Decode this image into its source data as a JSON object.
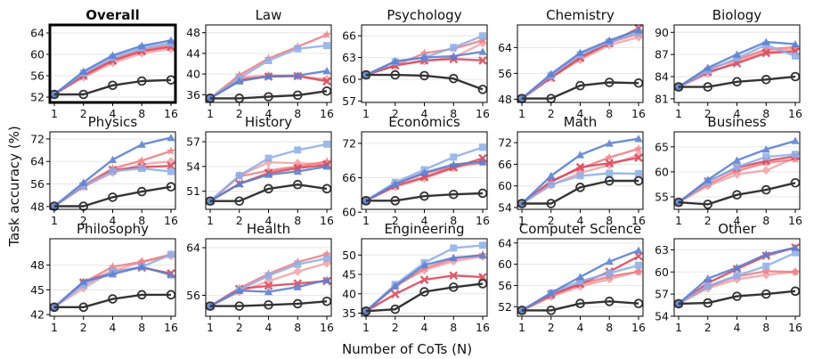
{
  "figure": {
    "ylabel": "Task accuracy (%)",
    "xlabel": "Number of CoTs (N)"
  },
  "series_styles": [
    {
      "color": "#333333",
      "marker": "circle-open"
    },
    {
      "color": "#5b7fd1",
      "marker": "triangle"
    },
    {
      "color": "#8fb0e8",
      "marker": "square"
    },
    {
      "color": "#d9485a",
      "marker": "x"
    },
    {
      "color": "#ee7f86",
      "marker": "star"
    },
    {
      "color": "#f4a3a8",
      "marker": "diamond"
    }
  ],
  "chart_data": [
    {
      "type": "line",
      "title": "Overall",
      "highlighted": true,
      "x": [
        "1",
        "2",
        "4",
        "8",
        "16"
      ],
      "yticks": [
        52,
        56,
        60,
        64
      ],
      "ylim": [
        51,
        65.5
      ],
      "series": [
        {
          "values": [
            52.5,
            52.5,
            54.2,
            55.0,
            55.2
          ]
        },
        {
          "values": [
            52.5,
            56.8,
            59.8,
            61.6,
            62.6
          ]
        },
        {
          "values": [
            52.5,
            56.5,
            59.4,
            61.2,
            62.1
          ]
        },
        {
          "values": [
            52.5,
            56.0,
            58.8,
            60.6,
            61.4
          ]
        },
        {
          "values": [
            52.5,
            56.2,
            59.0,
            60.9,
            61.7
          ]
        },
        {
          "values": [
            52.5,
            55.7,
            58.4,
            60.2,
            61.0
          ]
        }
      ]
    },
    {
      "type": "line",
      "title": "Law",
      "x": [
        "1",
        "2",
        "4",
        "8",
        "16"
      ],
      "yticks": [
        36,
        40,
        44,
        48
      ],
      "ylim": [
        34.5,
        49.5
      ],
      "series": [
        {
          "values": [
            35.3,
            35.3,
            35.6,
            35.9,
            36.7
          ]
        },
        {
          "values": [
            35.3,
            38.6,
            39.6,
            39.7,
            40.6
          ]
        },
        {
          "values": [
            35.3,
            39.2,
            42.6,
            44.9,
            45.5
          ]
        },
        {
          "values": [
            35.3,
            38.9,
            39.5,
            39.6,
            38.6
          ]
        },
        {
          "values": [
            35.3,
            39.8,
            43.0,
            45.3,
            47.6
          ]
        },
        {
          "values": [
            35.3,
            39.4,
            39.7,
            39.6,
            39.0
          ]
        }
      ]
    },
    {
      "type": "line",
      "title": "Psychology",
      "x": [
        "1",
        "2",
        "4",
        "8",
        "16"
      ],
      "yticks": [
        57,
        60,
        63,
        66
      ],
      "ylim": [
        56.8,
        67.5
      ],
      "series": [
        {
          "values": [
            60.6,
            60.6,
            60.5,
            60.1,
            58.6
          ]
        },
        {
          "values": [
            60.6,
            62.5,
            63.0,
            63.2,
            63.8
          ]
        },
        {
          "values": [
            60.6,
            62.4,
            63.0,
            64.4,
            66.0
          ]
        },
        {
          "values": [
            60.6,
            61.9,
            62.6,
            62.8,
            62.6
          ]
        },
        {
          "values": [
            60.6,
            61.9,
            63.6,
            64.2,
            65.4
          ]
        },
        {
          "values": [
            60.6,
            61.9,
            62.5,
            63.0,
            65.0
          ]
        }
      ]
    },
    {
      "type": "line",
      "title": "Chemistry",
      "x": [
        "1",
        "2",
        "4",
        "8",
        "16"
      ],
      "yticks": [
        48,
        56,
        64
      ],
      "ylim": [
        47,
        71
      ],
      "series": [
        {
          "values": [
            48.2,
            48.2,
            52.2,
            53.2,
            53.0
          ]
        },
        {
          "values": [
            48.2,
            55.8,
            62.4,
            66.2,
            69.4
          ]
        },
        {
          "values": [
            48.2,
            55.4,
            61.8,
            65.8,
            68.6
          ]
        },
        {
          "values": [
            48.2,
            54.6,
            60.8,
            65.4,
            70.0
          ]
        },
        {
          "values": [
            48.2,
            55.2,
            61.4,
            65.6,
            68.2
          ]
        },
        {
          "values": [
            48.2,
            54.8,
            60.2,
            64.8,
            67.2
          ]
        }
      ]
    },
    {
      "type": "line",
      "title": "Biology",
      "x": [
        "1",
        "2",
        "4",
        "8",
        "16"
      ],
      "yticks": [
        81,
        84,
        87,
        90
      ],
      "ylim": [
        80.5,
        91
      ],
      "series": [
        {
          "values": [
            82.6,
            82.6,
            83.3,
            83.6,
            84.0
          ]
        },
        {
          "values": [
            82.6,
            85.2,
            87.0,
            88.7,
            88.4
          ]
        },
        {
          "values": [
            82.6,
            84.8,
            86.5,
            88.3,
            86.8
          ]
        },
        {
          "values": [
            82.6,
            84.6,
            85.8,
            87.2,
            87.4
          ]
        },
        {
          "values": [
            82.6,
            85.0,
            86.3,
            87.7,
            88.0
          ]
        },
        {
          "values": [
            82.6,
            84.4,
            86.1,
            87.4,
            87.7
          ]
        }
      ]
    },
    {
      "type": "line",
      "title": "Physics",
      "x": [
        "1",
        "2",
        "4",
        "8",
        "16"
      ],
      "yticks": [
        48,
        56,
        64,
        72
      ],
      "ylim": [
        47,
        74.5
      ],
      "series": [
        {
          "values": [
            48.1,
            48.1,
            51.3,
            53.3,
            55.0
          ]
        },
        {
          "values": [
            48.1,
            56.5,
            64.6,
            70.0,
            72.4
          ]
        },
        {
          "values": [
            48.1,
            55.4,
            60.5,
            61.5,
            60.4
          ]
        },
        {
          "values": [
            48.1,
            55.2,
            61.0,
            62.0,
            62.4
          ]
        },
        {
          "values": [
            48.1,
            55.6,
            61.5,
            64.3,
            67.7
          ]
        },
        {
          "values": [
            48.1,
            55.0,
            60.0,
            63.0,
            64.0
          ]
        }
      ]
    },
    {
      "type": "line",
      "title": "History",
      "x": [
        "1",
        "2",
        "4",
        "8",
        "16"
      ],
      "yticks": [
        51,
        54,
        57
      ],
      "ylim": [
        48.8,
        58.2
      ],
      "series": [
        {
          "values": [
            49.8,
            49.8,
            51.3,
            51.8,
            51.3
          ]
        },
        {
          "values": [
            49.8,
            51.9,
            53.0,
            53.4,
            54.0
          ]
        },
        {
          "values": [
            49.8,
            52.9,
            55.0,
            56.0,
            56.7
          ]
        },
        {
          "values": [
            49.8,
            51.9,
            53.2,
            53.8,
            54.2
          ]
        },
        {
          "values": [
            49.8,
            52.8,
            53.5,
            54.0,
            54.6
          ]
        },
        {
          "values": [
            49.8,
            52.9,
            54.5,
            54.4,
            54.3
          ]
        }
      ]
    },
    {
      "type": "line",
      "title": "Economics",
      "x": [
        "1",
        "2",
        "4",
        "8",
        "16"
      ],
      "yticks": [
        60,
        66,
        72
      ],
      "ylim": [
        60.5,
        74
      ],
      "series": [
        {
          "values": [
            62.0,
            62.0,
            62.8,
            63.1,
            63.3
          ]
        },
        {
          "values": [
            62.0,
            64.9,
            66.9,
            68.3,
            68.8
          ]
        },
        {
          "values": [
            62.0,
            65.2,
            67.4,
            69.6,
            71.3
          ]
        },
        {
          "values": [
            62.0,
            64.6,
            66.1,
            67.8,
            69.4
          ]
        },
        {
          "values": [
            62.0,
            64.9,
            66.7,
            68.0,
            68.6
          ]
        },
        {
          "values": [
            62.0,
            64.4,
            65.9,
            67.7,
            68.8
          ]
        }
      ]
    },
    {
      "type": "line",
      "title": "Math",
      "x": [
        "1",
        "2",
        "4",
        "8",
        "16"
      ],
      "yticks": [
        54,
        60,
        66,
        72
      ],
      "ylim": [
        53.5,
        75
      ],
      "series": [
        {
          "values": [
            55.1,
            55.1,
            59.6,
            61.4,
            61.4
          ]
        },
        {
          "values": [
            55.1,
            62.8,
            68.6,
            71.8,
            73.1
          ]
        },
        {
          "values": [
            55.1,
            60.4,
            62.8,
            63.5,
            63.4
          ]
        },
        {
          "values": [
            55.1,
            61.1,
            65.2,
            66.3,
            67.8
          ]
        },
        {
          "values": [
            55.1,
            61.4,
            64.8,
            67.9,
            70.3
          ]
        },
        {
          "values": [
            55.1,
            60.2,
            63.6,
            65.8,
            68.6
          ]
        }
      ]
    },
    {
      "type": "line",
      "title": "Business",
      "x": [
        "1",
        "2",
        "4",
        "8",
        "16"
      ],
      "yticks": [
        55,
        60,
        65
      ],
      "ylim": [
        52.5,
        68
      ],
      "series": [
        {
          "values": [
            53.9,
            53.5,
            55.4,
            56.4,
            57.8
          ]
        },
        {
          "values": [
            53.9,
            58.4,
            62.3,
            64.5,
            66.2
          ]
        },
        {
          "values": [
            53.9,
            58.0,
            61.0,
            63.0,
            63.5
          ]
        },
        {
          "values": [
            53.9,
            58.1,
            60.8,
            62.2,
            63.1
          ]
        },
        {
          "values": [
            53.9,
            57.5,
            60.2,
            61.8,
            62.5
          ]
        },
        {
          "values": [
            53.9,
            57.2,
            59.5,
            60.3,
            62.8
          ]
        }
      ]
    },
    {
      "type": "line",
      "title": "Philosophy",
      "x": [
        "1",
        "2",
        "4",
        "8",
        "16"
      ],
      "yticks": [
        42,
        45,
        48
      ],
      "ylim": [
        41.8,
        51.2
      ],
      "series": [
        {
          "values": [
            42.9,
            42.9,
            43.9,
            44.4,
            44.4
          ]
        },
        {
          "values": [
            42.9,
            46.0,
            46.9,
            47.8,
            46.8
          ]
        },
        {
          "values": [
            42.9,
            45.6,
            47.2,
            47.8,
            49.3
          ]
        },
        {
          "values": [
            42.9,
            45.9,
            47.2,
            47.7,
            47.0
          ]
        },
        {
          "values": [
            42.9,
            45.9,
            47.8,
            48.4,
            49.3
          ]
        },
        {
          "values": [
            42.9,
            45.2,
            47.3,
            48.4,
            49.1
          ]
        }
      ]
    },
    {
      "type": "line",
      "title": "Health",
      "x": [
        "1",
        "2",
        "4",
        "8",
        "16"
      ],
      "yticks": [
        56,
        64
      ],
      "ylim": [
        52.5,
        65.5
      ],
      "series": [
        {
          "values": [
            54.2,
            54.2,
            54.4,
            54.6,
            55.0
          ]
        },
        {
          "values": [
            54.2,
            56.8,
            56.6,
            57.4,
            58.6
          ]
        },
        {
          "values": [
            54.2,
            56.9,
            59.3,
            61.2,
            62.2
          ]
        },
        {
          "values": [
            54.2,
            57.1,
            57.6,
            58.0,
            58.4
          ]
        },
        {
          "values": [
            54.2,
            57.2,
            59.6,
            61.6,
            62.9
          ]
        },
        {
          "values": [
            54.2,
            56.6,
            58.4,
            60.0,
            61.4
          ]
        }
      ]
    },
    {
      "type": "line",
      "title": "Engineering",
      "x": [
        "1",
        "2",
        "4",
        "8",
        "16"
      ],
      "yticks": [
        35,
        40,
        45,
        50
      ],
      "ylim": [
        34.2,
        54.2
      ],
      "series": [
        {
          "values": [
            35.5,
            36.0,
            40.5,
            41.7,
            42.6
          ]
        },
        {
          "values": [
            35.5,
            42.0,
            47.4,
            49.3,
            49.9
          ]
        },
        {
          "values": [
            35.5,
            42.4,
            48.0,
            51.8,
            52.5
          ]
        },
        {
          "values": [
            35.5,
            39.9,
            43.6,
            44.7,
            44.3
          ]
        },
        {
          "values": [
            35.5,
            41.8,
            46.6,
            49.0,
            50.1
          ]
        },
        {
          "values": [
            35.5,
            42.1,
            46.1,
            48.4,
            49.6
          ]
        }
      ]
    },
    {
      "type": "line",
      "title": "Computer Science",
      "x": [
        "1",
        "2",
        "4",
        "8",
        "16"
      ],
      "yticks": [
        52,
        56,
        60,
        64
      ],
      "ylim": [
        50.2,
        64.8
      ],
      "series": [
        {
          "values": [
            51.3,
            51.3,
            52.6,
            53.0,
            52.6
          ]
        },
        {
          "values": [
            51.3,
            54.6,
            57.6,
            60.5,
            62.6
          ]
        },
        {
          "values": [
            51.3,
            54.6,
            56.8,
            58.3,
            59.8
          ]
        },
        {
          "values": [
            51.3,
            54.3,
            56.3,
            58.6,
            61.5
          ]
        },
        {
          "values": [
            51.3,
            54.0,
            56.2,
            57.7,
            58.6
          ]
        },
        {
          "values": [
            51.3,
            53.9,
            55.8,
            57.2,
            58.6
          ]
        }
      ]
    },
    {
      "type": "line",
      "title": "Other",
      "x": [
        "1",
        "2",
        "4",
        "8",
        "16"
      ],
      "yticks": [
        54,
        57,
        60,
        63
      ],
      "ylim": [
        54,
        64.5
      ],
      "series": [
        {
          "values": [
            55.7,
            55.8,
            56.7,
            57.0,
            57.4
          ]
        },
        {
          "values": [
            55.7,
            59.1,
            60.6,
            62.4,
            63.3
          ]
        },
        {
          "values": [
            55.7,
            58.1,
            59.5,
            60.8,
            62.6
          ]
        },
        {
          "values": [
            55.7,
            58.5,
            60.4,
            62.2,
            63.3
          ]
        },
        {
          "values": [
            55.7,
            58.0,
            59.4,
            60.1,
            60.0
          ]
        },
        {
          "values": [
            55.7,
            57.8,
            59.0,
            59.6,
            60.0
          ]
        }
      ]
    }
  ]
}
